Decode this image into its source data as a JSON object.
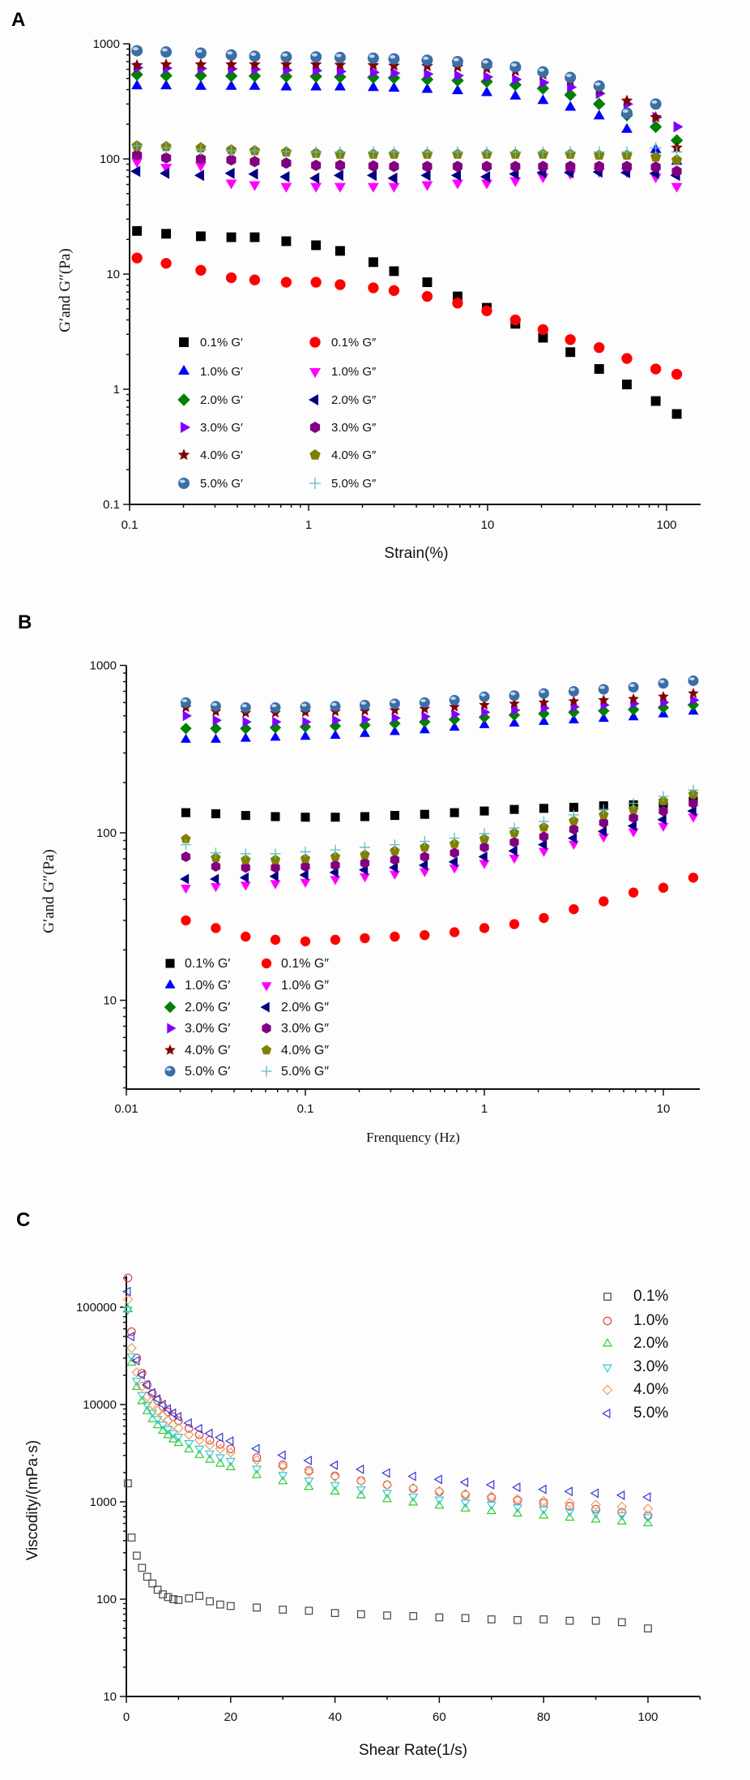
{
  "chart_data": [
    {
      "panel_label": "A",
      "type": "scatter",
      "xlabel": "Strain(%)",
      "ylabel": "G′and G″(Pa)",
      "xscale": "log",
      "yscale": "log",
      "xlim": [
        0.1,
        155
      ],
      "ylim": [
        0.1,
        1000
      ],
      "xticks": [
        "0.1",
        "1",
        "10",
        "100"
      ],
      "yticks": [
        "0.1",
        "1",
        "10",
        "100",
        "1000"
      ],
      "grid": false,
      "legend_position": "lower-left",
      "x": [
        0.11,
        0.16,
        0.25,
        0.37,
        0.5,
        0.75,
        1.1,
        1.5,
        2.3,
        3.0,
        4.6,
        6.8,
        9.9,
        14.3,
        20.4,
        29,
        42,
        60,
        87,
        114
      ],
      "series": [
        {
          "name": "0.1% G′",
          "marker": "square",
          "color": "#000000",
          "values": [
            23.7,
            22.4,
            21.3,
            20.9,
            20.9,
            19.3,
            17.8,
            15.9,
            12.7,
            10.6,
            8.5,
            6.4,
            5.1,
            3.7,
            2.8,
            2.1,
            1.5,
            1.1,
            0.79,
            0.61
          ]
        },
        {
          "name": "0.1% G″",
          "marker": "circle",
          "color": "#ff0000",
          "values": [
            13.8,
            12.4,
            10.8,
            9.3,
            8.9,
            8.5,
            8.5,
            8.1,
            7.6,
            7.2,
            6.4,
            5.6,
            4.8,
            4.0,
            3.3,
            2.7,
            2.3,
            1.85,
            1.5,
            1.35
          ]
        },
        {
          "name": "1.0% G′",
          "marker": "triangle-up",
          "color": "#0000ff",
          "values": [
            430,
            430,
            425,
            425,
            425,
            420,
            420,
            420,
            415,
            410,
            400,
            390,
            375,
            350,
            320,
            280,
            235,
            180,
            120,
            95
          ]
        },
        {
          "name": "1.0% G″",
          "marker": "triangle-down",
          "color": "#ff00ff",
          "values": [
            95,
            85,
            88,
            62,
            60,
            58,
            58,
            58,
            58,
            58,
            60,
            62,
            62,
            65,
            70,
            75,
            78,
            78,
            70,
            58
          ]
        },
        {
          "name": "2.0% G′",
          "marker": "diamond",
          "color": "#008000",
          "values": [
            540,
            530,
            530,
            525,
            525,
            520,
            520,
            515,
            510,
            505,
            490,
            480,
            470,
            440,
            410,
            360,
            300,
            240,
            190,
            145
          ]
        },
        {
          "name": "2.0% G″",
          "marker": "triangle-left",
          "color": "#000080",
          "values": [
            78,
            75,
            72,
            75,
            74,
            70,
            68,
            72,
            72,
            68,
            72,
            72,
            70,
            74,
            76,
            76,
            77,
            76,
            75,
            72
          ]
        },
        {
          "name": "3.0% G′",
          "marker": "triangle-right",
          "color": "#8000ff",
          "values": [
            620,
            615,
            610,
            605,
            600,
            590,
            585,
            575,
            565,
            555,
            545,
            530,
            515,
            490,
            460,
            420,
            370,
            300,
            230,
            190
          ]
        },
        {
          "name": "3.0% G″",
          "marker": "hexagon",
          "color": "#800080",
          "values": [
            108,
            102,
            100,
            98,
            95,
            92,
            88,
            88,
            87,
            86,
            86,
            86,
            86,
            86,
            86,
            86,
            86,
            86,
            85,
            78
          ]
        },
        {
          "name": "4.0% G′",
          "marker": "star",
          "color": "#800000",
          "values": [
            650,
            660,
            660,
            660,
            660,
            660,
            660,
            655,
            650,
            645,
            640,
            630,
            610,
            580,
            540,
            480,
            400,
            320,
            230,
            125
          ]
        },
        {
          "name": "4.0% G″",
          "marker": "pentagon",
          "color": "#808000",
          "values": [
            130,
            128,
            125,
            120,
            118,
            115,
            112,
            110,
            110,
            110,
            110,
            110,
            110,
            110,
            110,
            110,
            108,
            108,
            104,
            98
          ]
        },
        {
          "name": "5.0% G′",
          "marker": "sphere",
          "color": "#3a6ea8",
          "values": [
            870,
            850,
            830,
            800,
            780,
            770,
            770,
            760,
            750,
            740,
            720,
            700,
            670,
            630,
            570,
            510,
            430,
            250,
            300,
            null
          ]
        },
        {
          "name": "5.0% G″",
          "marker": "plus",
          "color": "#5fbcc4",
          "values": [
            130,
            125,
            120,
            118,
            118,
            116,
            115,
            115,
            115,
            115,
            115,
            115,
            115,
            115,
            115,
            115,
            115,
            115,
            125,
            115
          ]
        }
      ]
    },
    {
      "panel_label": "B",
      "type": "scatter",
      "xlabel": "Frenquency (Hz)",
      "ylabel": "G′and G″(Pa)",
      "xscale": "log",
      "yscale": "log",
      "xlim": [
        0.01,
        16
      ],
      "ylim": [
        2.95,
        1000
      ],
      "xticks": [
        "0.01",
        "0.1",
        "1",
        "10"
      ],
      "yticks": [
        "10",
        "100",
        "1000"
      ],
      "grid": false,
      "legend_position": "lower-left",
      "x": [
        0.0215,
        0.0316,
        0.0464,
        0.068,
        0.1,
        0.147,
        0.215,
        0.316,
        0.464,
        0.681,
        1,
        1.47,
        2.15,
        3.16,
        4.64,
        6.81,
        10,
        14.7
      ],
      "series": [
        {
          "name": "0.1% G′",
          "marker": "square",
          "color": "#000000",
          "values": [
            132,
            130,
            127,
            125,
            124,
            124,
            125,
            127,
            129,
            132,
            135,
            138,
            140,
            142,
            145,
            147,
            150,
            155
          ]
        },
        {
          "name": "0.1% G″",
          "marker": "circle",
          "color": "#ff0000",
          "values": [
            30,
            27,
            24,
            23,
            22.5,
            23,
            23.5,
            24,
            24.5,
            25.5,
            27,
            28.5,
            31,
            35,
            39,
            44,
            47,
            54
          ]
        },
        {
          "name": "1.0% G′",
          "marker": "triangle-up",
          "color": "#0000ff",
          "values": [
            360,
            360,
            365,
            370,
            375,
            380,
            390,
            400,
            410,
            425,
            440,
            450,
            460,
            470,
            480,
            490,
            510,
            530
          ]
        },
        {
          "name": "1.0% G″",
          "marker": "triangle-down",
          "color": "#ff00ff",
          "values": [
            47,
            48,
            49,
            50,
            51,
            53,
            55,
            57,
            59,
            62,
            66,
            71,
            78,
            86,
            95,
            102,
            110,
            125
          ]
        },
        {
          "name": "2.0% G′",
          "marker": "diamond",
          "color": "#008000",
          "values": [
            420,
            420,
            420,
            425,
            430,
            435,
            440,
            450,
            460,
            475,
            490,
            505,
            515,
            525,
            535,
            545,
            560,
            580
          ]
        },
        {
          "name": "2.0% G″",
          "marker": "triangle-left",
          "color": "#000080",
          "values": [
            53,
            53,
            54,
            55,
            56,
            58,
            60,
            62,
            64,
            67,
            72,
            78,
            85,
            93,
            102,
            110,
            120,
            135
          ]
        },
        {
          "name": "3.0% G′",
          "marker": "triangle-right",
          "color": "#8000ff",
          "values": [
            500,
            470,
            460,
            460,
            460,
            470,
            475,
            485,
            495,
            510,
            525,
            540,
            555,
            565,
            580,
            590,
            600,
            620
          ]
        },
        {
          "name": "3.0% G″",
          "marker": "hexagon",
          "color": "#800080",
          "values": [
            72,
            63,
            62,
            62,
            63,
            64,
            66,
            69,
            72,
            76,
            82,
            88,
            95,
            105,
            115,
            123,
            135,
            150
          ]
        },
        {
          "name": "4.0% G′",
          "marker": "star",
          "color": "#800000",
          "values": [
            560,
            530,
            520,
            520,
            525,
            530,
            535,
            540,
            550,
            565,
            580,
            590,
            600,
            610,
            620,
            630,
            650,
            680
          ]
        },
        {
          "name": "4.0% G″",
          "marker": "pentagon",
          "color": "#808000",
          "values": [
            92,
            71,
            69,
            69,
            70,
            72,
            74,
            78,
            82,
            86,
            92,
            100,
            108,
            118,
            128,
            138,
            155,
            170
          ]
        },
        {
          "name": "5.0% G′",
          "marker": "sphere",
          "color": "#3a6ea8",
          "values": [
            600,
            570,
            560,
            560,
            565,
            570,
            580,
            590,
            600,
            620,
            650,
            660,
            680,
            700,
            720,
            740,
            780,
            810
          ]
        },
        {
          "name": "5.0% G″",
          "marker": "plus",
          "color": "#5fbcc4",
          "values": [
            85,
            76,
            75,
            75,
            77,
            79,
            82,
            85,
            89,
            93,
            99,
            107,
            117,
            128,
            138,
            150,
            165,
            180
          ]
        }
      ]
    },
    {
      "panel_label": "C",
      "type": "scatter",
      "xlabel": "Shear Rate(1/s)",
      "ylabel": "Viscodity/(mPa·s)",
      "xscale": "linear",
      "yscale": "log",
      "xlim": [
        0,
        110
      ],
      "ylim": [
        10,
        210000
      ],
      "xticks": [
        "0",
        "20",
        "40",
        "60",
        "80",
        "100"
      ],
      "yticks": [
        "10",
        "100",
        "1000",
        "10000",
        "100000"
      ],
      "grid": false,
      "legend_position": "top-right",
      "x": [
        0.3,
        1,
        2,
        3,
        4,
        5,
        6,
        7,
        8,
        9,
        10,
        12,
        14,
        16,
        18,
        20,
        25,
        30,
        35,
        40,
        45,
        50,
        55,
        60,
        65,
        70,
        75,
        80,
        85,
        90,
        95,
        100
      ],
      "series": [
        {
          "name": "0.1%",
          "marker": "open-square",
          "color": "#444444",
          "values": [
            1550,
            430,
            280,
            210,
            170,
            145,
            125,
            112,
            105,
            100,
            98,
            102,
            108,
            95,
            88,
            85,
            82,
            78,
            76,
            72,
            70,
            68,
            67,
            65,
            64,
            62,
            61,
            62,
            60,
            60,
            58,
            50
          ]
        },
        {
          "name": "1.0%",
          "marker": "open-circle",
          "color": "#e0404a",
          "values": [
            200000,
            56000,
            30000,
            21000,
            16000,
            13000,
            11000,
            9500,
            8400,
            7500,
            6800,
            5700,
            4900,
            4300,
            3900,
            3500,
            2850,
            2400,
            2100,
            1850,
            1650,
            1500,
            1370,
            1270,
            1180,
            1100,
            1030,
            970,
            900,
            840,
            780,
            720
          ]
        },
        {
          "name": "2.0%",
          "marker": "open-triangle-up",
          "color": "#33cc33",
          "values": [
            95000,
            26800,
            15100,
            10800,
            8500,
            7060,
            6100,
            5350,
            4820,
            4360,
            4010,
            3450,
            3020,
            2700,
            2460,
            2260,
            1880,
            1620,
            1420,
            1270,
            1160,
            1060,
            980,
            910,
            850,
            800,
            755,
            720,
            685,
            655,
            625,
            600
          ]
        },
        {
          "name": "3.0%",
          "marker": "open-triangle-down",
          "color": "#33c8d8",
          "values": [
            95000,
            31300,
            17600,
            12600,
            9950,
            8280,
            7130,
            6250,
            5630,
            5090,
            4690,
            4030,
            3530,
            3160,
            2880,
            2640,
            2200,
            1890,
            1660,
            1490,
            1350,
            1240,
            1140,
            1060,
            990,
            940,
            880,
            840,
            800,
            765,
            730,
            700
          ]
        },
        {
          "name": "4.0%",
          "marker": "open-diamond",
          "color": "#e8a060",
          "values": [
            120000,
            38000,
            21400,
            15400,
            12100,
            10000,
            8650,
            7600,
            6850,
            6200,
            5700,
            4900,
            4300,
            3840,
            3500,
            3210,
            2680,
            2300,
            2020,
            1810,
            1640,
            1500,
            1390,
            1290,
            1210,
            1140,
            1070,
            1020,
            975,
            930,
            890,
            850
          ]
        },
        {
          "name": "5.0%",
          "marker": "open-triangle-left",
          "color": "#3636d0",
          "values": [
            145000,
            50000,
            28200,
            20200,
            15900,
            13200,
            11400,
            10000,
            9000,
            8150,
            7500,
            6450,
            5650,
            5050,
            4600,
            4220,
            3520,
            3020,
            2660,
            2380,
            2160,
            1980,
            1830,
            1700,
            1590,
            1500,
            1410,
            1345,
            1280,
            1225,
            1170,
            1120
          ]
        }
      ]
    }
  ]
}
